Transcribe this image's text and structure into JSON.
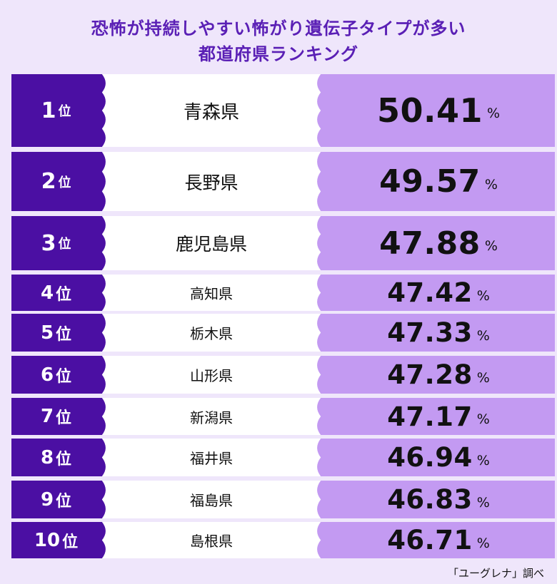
{
  "title_line1": "恐怖が持続しやすい怖がり遺伝子タイプが多い",
  "title_line2": "都道府県ランキング",
  "rank_suffix": "位",
  "unit": "%",
  "source": "「ユーグレナ」調べ",
  "colors": {
    "rank_bg": "#4b0fa3",
    "value_bg": "#c39af2",
    "page_bg": "#efe6fb",
    "title": "#5a1fb5"
  },
  "chart_data": {
    "type": "table",
    "columns": [
      "rank",
      "prefecture",
      "percent"
    ],
    "rows": [
      {
        "rank": "1",
        "prefecture": "青森県",
        "value": "50.41"
      },
      {
        "rank": "2",
        "prefecture": "長野県",
        "value": "49.57"
      },
      {
        "rank": "3",
        "prefecture": "鹿児島県",
        "value": "47.88"
      },
      {
        "rank": "4",
        "prefecture": "高知県",
        "value": "47.42"
      },
      {
        "rank": "5",
        "prefecture": "栃木県",
        "value": "47.33"
      },
      {
        "rank": "6",
        "prefecture": "山形県",
        "value": "47.28"
      },
      {
        "rank": "7",
        "prefecture": "新潟県",
        "value": "47.17"
      },
      {
        "rank": "8",
        "prefecture": "福井県",
        "value": "46.94"
      },
      {
        "rank": "9",
        "prefecture": "福島県",
        "value": "46.83"
      },
      {
        "rank": "10",
        "prefecture": "島根県",
        "value": "46.71"
      }
    ]
  }
}
